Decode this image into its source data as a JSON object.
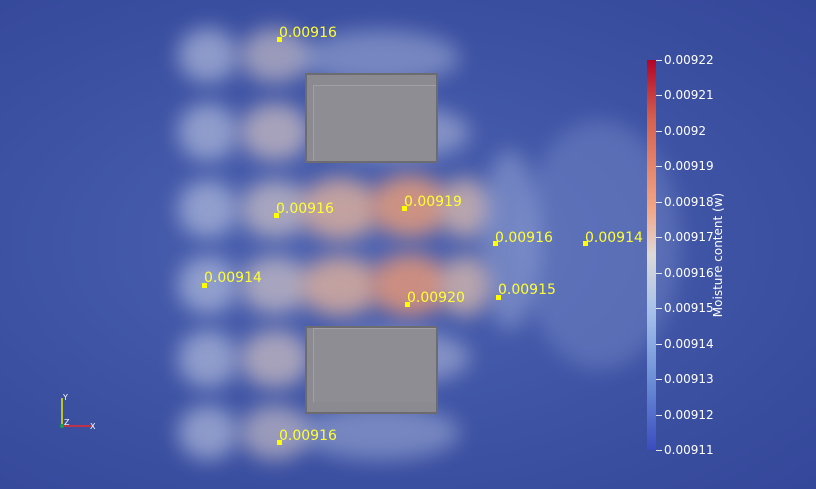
{
  "probes": [
    {
      "value": "0.00916"
    },
    {
      "value": "0.00916"
    },
    {
      "value": "0.00919"
    },
    {
      "value": "0.00916"
    },
    {
      "value": "0.00914"
    },
    {
      "value": "0.00914"
    },
    {
      "value": "0.00920"
    },
    {
      "value": "0.00915"
    },
    {
      "value": "0.00916"
    }
  ],
  "colorbar": {
    "title": "Moisture content (w)",
    "ticks": [
      "0.00922",
      "0.00921",
      "0.0092",
      "0.00919",
      "0.00918",
      "0.00917",
      "0.00916",
      "0.00915",
      "0.00914",
      "0.00913",
      "0.00912",
      "0.00911"
    ]
  },
  "axes": {
    "y": "Y",
    "z": "Z",
    "x": "X"
  },
  "colors": {
    "background": "#3b4fa0",
    "probe": "#ffff00",
    "obstacle": "#8a8a90",
    "colormap_high": "#b40426",
    "colormap_mid": "#ddd9d8",
    "colormap_low": "#3b4cc0"
  }
}
